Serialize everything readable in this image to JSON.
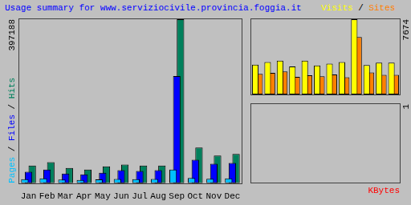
{
  "chart_data": [
    {
      "type": "bar",
      "title": "Usage summary for www.serviziocivile.provincia.foggia.it",
      "ylabel": "Pages / Files / Hits",
      "categories": [
        "Jan",
        "Feb",
        "Mar",
        "Apr",
        "May",
        "Jun",
        "Jul",
        "Aug",
        "Sep",
        "Oct",
        "Nov",
        "Dec"
      ],
      "series": [
        {
          "name": "Pages",
          "color": "#00C0FF",
          "values": [
            9800,
            11500,
            8900,
            7800,
            9200,
            10400,
            9600,
            10100,
            33000,
            12800,
            11000,
            11800
          ]
        },
        {
          "name": "Files",
          "color": "#0000FF",
          "values": [
            27500,
            33000,
            23600,
            21600,
            25500,
            31500,
            29500,
            31500,
            259500,
            57000,
            47000,
            49000
          ]
        },
        {
          "name": "Hits",
          "color": "#00805C",
          "values": [
            43000,
            51000,
            37000,
            33000,
            41000,
            45000,
            43000,
            43000,
            397188,
            86500,
            67000,
            71000
          ]
        }
      ],
      "ylim": [
        0,
        397188
      ],
      "yticks": [
        397188
      ],
      "grid": false
    },
    {
      "type": "bar",
      "title": "Visits / Sites",
      "categories": [
        "Jan",
        "Feb",
        "Mar",
        "Apr",
        "May",
        "Jun",
        "Jul",
        "Aug",
        "Sep",
        "Oct",
        "Nov",
        "Dec"
      ],
      "series": [
        {
          "name": "Visits",
          "color": "#FFFF00",
          "values": [
            3050,
            3300,
            3450,
            2850,
            3450,
            2950,
            3150,
            3300,
            7674,
            3000,
            3250,
            3250
          ]
        },
        {
          "name": "Sites",
          "color": "#FF8000",
          "values": [
            2100,
            2200,
            2350,
            1800,
            1950,
            1850,
            2050,
            1750,
            5850,
            2250,
            2000,
            2000
          ]
        }
      ],
      "ylim": [
        0,
        7674
      ],
      "yticks": [
        7674
      ],
      "grid": false,
      "tick_labels": "y"
    },
    {
      "type": "bar",
      "xlabel": "KBytes",
      "categories": [
        "Jan",
        "Feb",
        "Mar",
        "Apr",
        "May",
        "Jun",
        "Jul",
        "Aug",
        "Sep",
        "Oct",
        "Nov",
        "Dec"
      ],
      "series": [
        {
          "name": "KBytes",
          "color": "#FF0000",
          "values": [
            0,
            0,
            0,
            0,
            0,
            0,
            0,
            0,
            0,
            0,
            0,
            0
          ]
        }
      ],
      "ylim": [
        0,
        1
      ],
      "yticks": [
        1
      ],
      "grid": false,
      "tick_labels": "y"
    }
  ]
}
